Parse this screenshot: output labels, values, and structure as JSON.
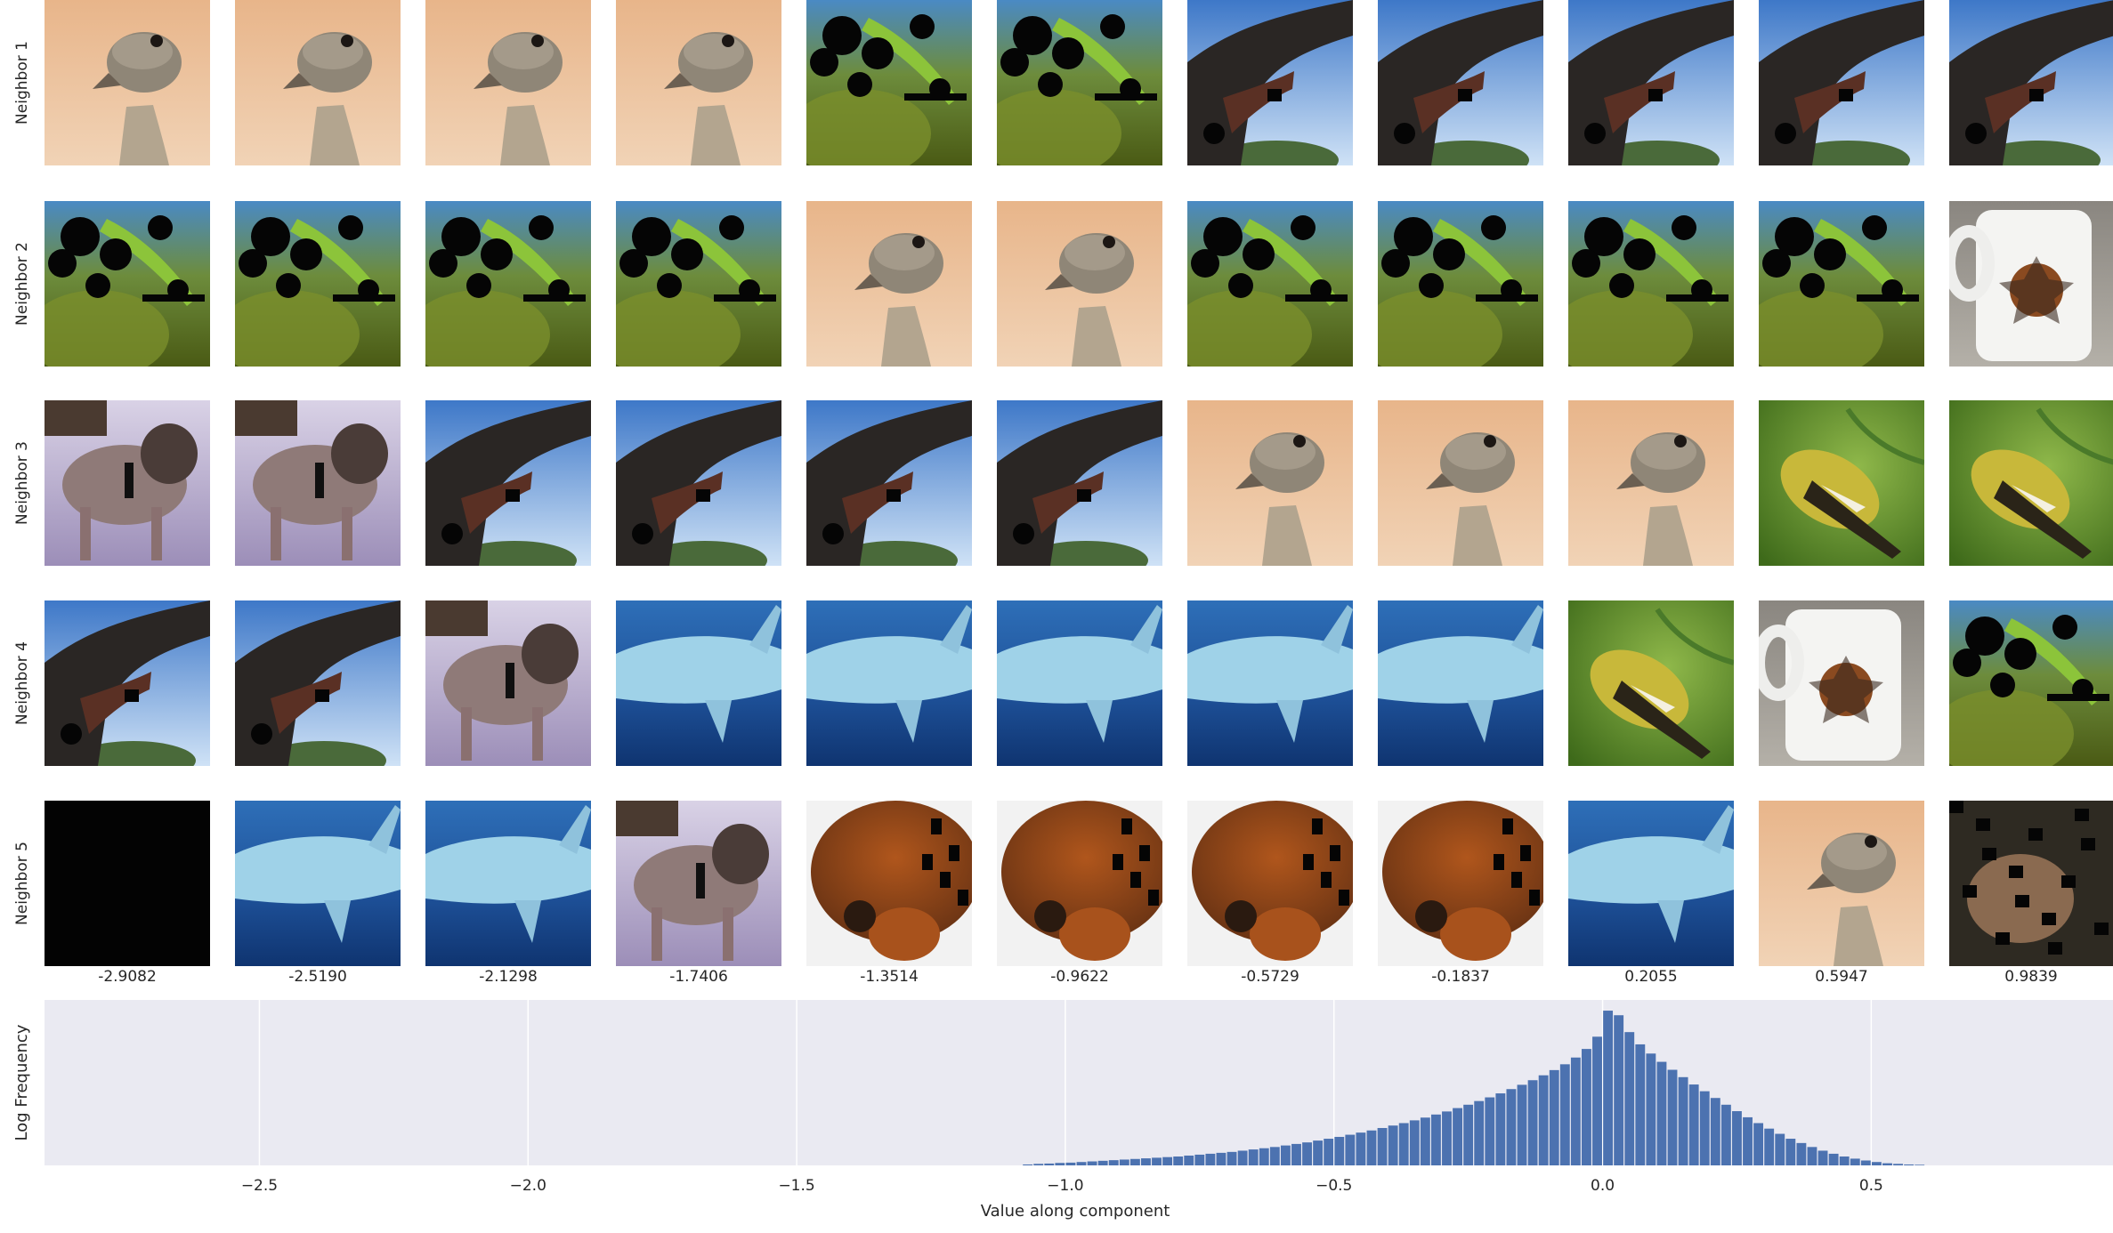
{
  "rows": [
    "Neighbor 1",
    "Neighbor 2",
    "Neighbor 3",
    "Neighbor 4",
    "Neighbor 5"
  ],
  "column_values": [
    "-2.9082",
    "-2.5190",
    "-2.1298",
    "-1.7406",
    "-1.3514",
    "-0.9622",
    "-0.5729",
    "-0.1837",
    "0.2055",
    "0.5947",
    "0.9839"
  ],
  "thumbnails": [
    [
      "ostrich",
      "ostrich",
      "ostrich",
      "ostrich",
      "leaf-masked",
      "leaf-masked",
      "branch-sky",
      "branch-sky",
      "branch-sky",
      "branch-sky",
      "branch-sky"
    ],
    [
      "leaf-masked",
      "leaf-masked",
      "leaf-masked",
      "leaf-masked",
      "ostrich",
      "ostrich",
      "leaf-masked",
      "leaf-masked",
      "leaf-masked",
      "leaf-masked",
      "mug"
    ],
    [
      "dog-snow",
      "dog-snow",
      "branch-sky",
      "branch-sky",
      "branch-sky",
      "branch-sky",
      "ostrich",
      "ostrich",
      "ostrich",
      "finch",
      "finch"
    ],
    [
      "branch-sky",
      "branch-sky",
      "dog-snow",
      "shark",
      "shark",
      "shark",
      "shark",
      "shark",
      "finch",
      "mug",
      "leaf-masked"
    ],
    [
      "black",
      "shark",
      "shark",
      "dog-snow",
      "fox",
      "fox",
      "fox",
      "fox",
      "shark",
      "ostrich",
      "fox-dark"
    ]
  ],
  "chart_data": {
    "type": "bar",
    "xlabel": "Value along component",
    "ylabel": "Log Frequency",
    "xlim": [
      -2.9,
      0.95
    ],
    "xticks": [
      -2.5,
      -2.0,
      -1.5,
      -1.0,
      -0.5,
      0.0,
      0.5
    ],
    "xtick_labels": [
      "−2.5",
      "−2.0",
      "−1.5",
      "−1.0",
      "−0.5",
      "0.0",
      "0.5"
    ],
    "ylim": [
      0,
      5.4
    ],
    "grid": true,
    "background": "#eaeaf2",
    "bar_color": "#4c72b0",
    "bin_width": 0.02,
    "bins_x": [
      -1.08,
      -1.06,
      -1.04,
      -1.02,
      -1.0,
      -0.98,
      -0.96,
      -0.94,
      -0.92,
      -0.9,
      -0.88,
      -0.86,
      -0.84,
      -0.82,
      -0.8,
      -0.78,
      -0.76,
      -0.74,
      -0.72,
      -0.7,
      -0.68,
      -0.66,
      -0.64,
      -0.62,
      -0.6,
      -0.58,
      -0.56,
      -0.54,
      -0.52,
      -0.5,
      -0.48,
      -0.46,
      -0.44,
      -0.42,
      -0.4,
      -0.38,
      -0.36,
      -0.34,
      -0.32,
      -0.3,
      -0.28,
      -0.26,
      -0.24,
      -0.22,
      -0.2,
      -0.18,
      -0.16,
      -0.14,
      -0.12,
      -0.1,
      -0.08,
      -0.06,
      -0.04,
      -0.02,
      0.0,
      0.02,
      0.04,
      0.06,
      0.08,
      0.1,
      0.12,
      0.14,
      0.16,
      0.18,
      0.2,
      0.22,
      0.24,
      0.26,
      0.28,
      0.3,
      0.32,
      0.34,
      0.36,
      0.38,
      0.4,
      0.42,
      0.44,
      0.46,
      0.48,
      0.5,
      0.52,
      0.54,
      0.56,
      0.58
    ],
    "bins_y": [
      0.03,
      0.05,
      0.06,
      0.08,
      0.09,
      0.11,
      0.13,
      0.15,
      0.17,
      0.19,
      0.21,
      0.23,
      0.25,
      0.27,
      0.29,
      0.32,
      0.35,
      0.38,
      0.41,
      0.44,
      0.48,
      0.52,
      0.56,
      0.6,
      0.65,
      0.7,
      0.75,
      0.81,
      0.87,
      0.93,
      1.0,
      1.07,
      1.14,
      1.22,
      1.3,
      1.38,
      1.47,
      1.56,
      1.66,
      1.76,
      1.87,
      1.98,
      2.1,
      2.22,
      2.35,
      2.49,
      2.63,
      2.78,
      2.94,
      3.11,
      3.3,
      3.52,
      3.8,
      4.2,
      5.05,
      4.9,
      4.35,
      3.95,
      3.65,
      3.38,
      3.12,
      2.88,
      2.64,
      2.42,
      2.2,
      1.98,
      1.77,
      1.57,
      1.38,
      1.2,
      1.03,
      0.87,
      0.73,
      0.6,
      0.48,
      0.38,
      0.29,
      0.22,
      0.16,
      0.11,
      0.07,
      0.05,
      0.03,
      0.02
    ]
  }
}
